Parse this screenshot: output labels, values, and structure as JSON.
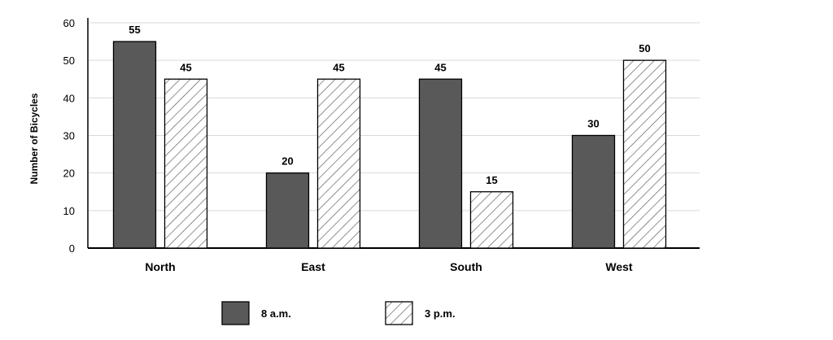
{
  "chart_data": {
    "type": "bar",
    "categories": [
      "North",
      "East",
      "South",
      "West"
    ],
    "series": [
      {
        "name": "8 a.m.",
        "values": [
          55,
          20,
          45,
          30
        ],
        "style": "solid",
        "color": "#595959"
      },
      {
        "name": "3 p.m.",
        "values": [
          45,
          45,
          15,
          50
        ],
        "style": "hatched",
        "color": "#ffffff"
      }
    ],
    "title": "",
    "xlabel": "",
    "ylabel": "Number of Bicycles",
    "ylim": [
      0,
      60
    ],
    "yticks": [
      0,
      10,
      20,
      30,
      40,
      50,
      60
    ],
    "grid": true,
    "legend_position": "bottom"
  }
}
